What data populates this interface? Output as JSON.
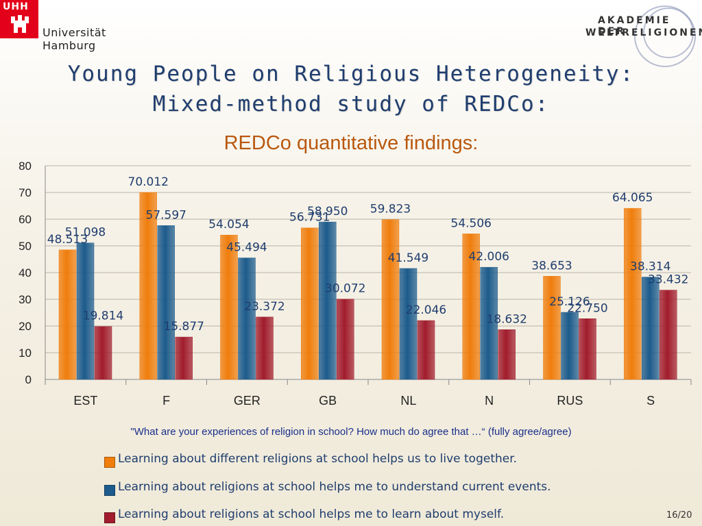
{
  "logo_left": {
    "box_text": "UHH",
    "name": "Universität Hamburg"
  },
  "logo_right": {
    "line1": "AKADEMIE DER",
    "line2": "WELTRELIGIONEN"
  },
  "title": {
    "line1": "Young People on Religious Heterogeneity:",
    "line2": "Mixed-method study of REDCo:"
  },
  "subtitle": "REDCo quantitative findings:",
  "question": "\"What are your experiences of religion in school? How much do agree that …“ (fully agree/agree)",
  "page_number": "16/20",
  "colors": {
    "series1": "#f07d0c",
    "series2": "#1c5b8c",
    "series3": "#a11c2c",
    "label_text": "#1f3d6e"
  },
  "chart_data": {
    "type": "bar",
    "categories": [
      "EST",
      "F",
      "GER",
      "GB",
      "NL",
      "N",
      "RUS",
      "S"
    ],
    "series": [
      {
        "name": "Learning about different religions at school helps us to live together.",
        "values": [
          48.513,
          70.012,
          54.054,
          56.731,
          59.823,
          54.506,
          38.653,
          64.065
        ]
      },
      {
        "name": "Learning about religions at school helps me to understand current events.",
        "values": [
          51.098,
          57.597,
          45.494,
          58.95,
          41.549,
          42.006,
          25.126,
          38.314
        ]
      },
      {
        "name": "Learning about religions at school helps me to learn about myself.",
        "values": [
          19.814,
          15.877,
          23.372,
          30.072,
          22.046,
          18.632,
          22.75,
          33.432
        ]
      }
    ],
    "data_labels": [
      [
        "48.513",
        "70.012",
        "54.054",
        "56.731",
        "59.823",
        "54.506",
        "38.653",
        "64.065"
      ],
      [
        "51.098",
        "57.597",
        "45.494",
        "58.950",
        "41.549",
        "42.006",
        "25.126",
        "38.314"
      ],
      [
        "19.814",
        "15.877",
        "23.372",
        "30.072",
        "22.046",
        "18.632",
        "22.750",
        "33.432"
      ]
    ],
    "y_ticks": [
      "0",
      "10",
      "20",
      "30",
      "40",
      "50",
      "60",
      "70",
      "80"
    ],
    "ylim": [
      0,
      80
    ],
    "grid": true,
    "legend_position": "bottom"
  }
}
